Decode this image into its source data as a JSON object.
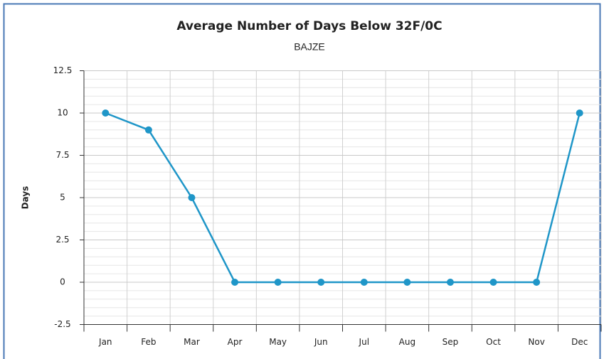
{
  "chart_data": {
    "type": "line",
    "title": "Average Number of Days Below 32F/0C",
    "subtitle": "BAJZE",
    "y_label": "Days",
    "categories": [
      "Jan",
      "Feb",
      "Mar",
      "Apr",
      "May",
      "Jun",
      "Jul",
      "Aug",
      "Sep",
      "Oct",
      "Nov",
      "Dec"
    ],
    "series": [
      {
        "name": "Days",
        "color": "#1f96c8",
        "values": [
          10,
          9,
          5,
          0,
          0,
          0,
          0,
          0,
          0,
          0,
          0,
          10
        ]
      }
    ],
    "ylim": [
      -2.5,
      12.5
    ],
    "yticks": [
      -2.5,
      0,
      2.5,
      5,
      7.5,
      10,
      12.5
    ],
    "grid": true
  }
}
